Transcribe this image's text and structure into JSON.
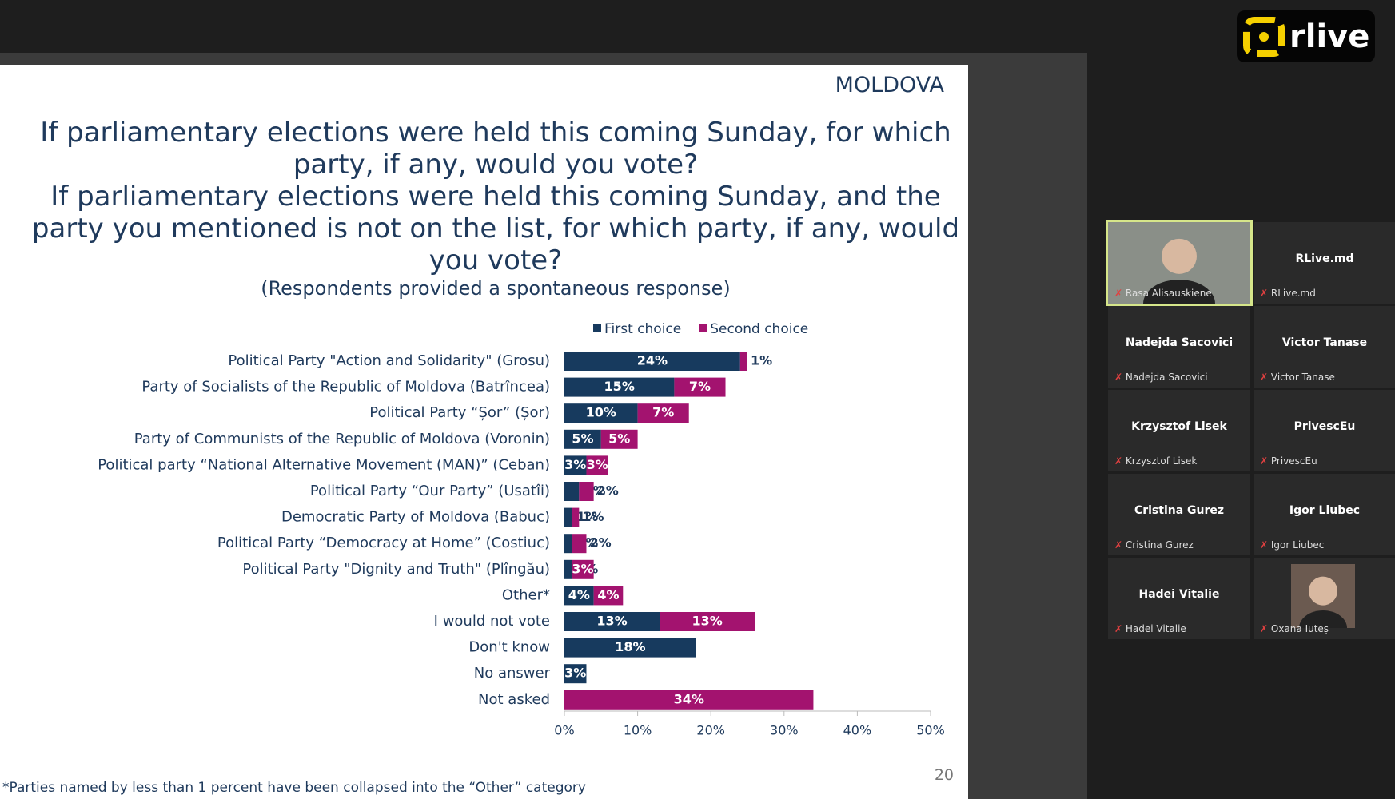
{
  "app": {
    "logo": "rlive"
  },
  "slide": {
    "header": "MOLDOVA",
    "questions": [
      "If parliamentary elections were held this coming Sunday, for which party, if any, would you vote?",
      "If parliamentary elections were held this coming Sunday, and the party you mentioned is not on the list, for which party, if any, would you vote?"
    ],
    "subtitle": "(Respondents provided a spontaneous response)",
    "footnote": "*Parties named by less than 1 percent have been collapsed into the “Other” category",
    "page_number": "20"
  },
  "chart_data": {
    "type": "stacked-barh",
    "categories": [
      "Political Party \"Action and Solidarity\" (Grosu)",
      "Party of Socialists of the Republic of Moldova (Batrîncea)",
      "Political Party “Șor” (Șor)",
      "Party of Communists of the Republic of Moldova (Voronin)",
      "Political party “National Alternative Movement (MAN)” (Ceban)",
      "Political Party “Our Party” (Usatîi)",
      "Democratic Party of Moldova (Babuc)",
      "Political Party “Democracy at Home” (Costiuc)",
      "Political Party \"Dignity and Truth\" (Plîngău)",
      "Other*",
      "I would not vote",
      "Don't know",
      "No answer",
      "Not asked"
    ],
    "series": [
      {
        "name": "First choice",
        "color": "#173a5e",
        "values": [
          24,
          15,
          10,
          5,
          3,
          2,
          1,
          1,
          1,
          4,
          13,
          18,
          3,
          null
        ],
        "value_labels": [
          "24%",
          "15%",
          "10%",
          "5%",
          "3%",
          "2%",
          "1%",
          "1%",
          "1%",
          "4%",
          "13%",
          "18%",
          "3%",
          null
        ]
      },
      {
        "name": "Second choice",
        "color": "#a3136f",
        "values": [
          1,
          7,
          7,
          5,
          3,
          2,
          1,
          2,
          3,
          4,
          13,
          null,
          null,
          34
        ],
        "value_labels": [
          "1%",
          "7%",
          "7%",
          "5%",
          "3%",
          "2%",
          "1%",
          "2%",
          "3%",
          "4%",
          "13%",
          null,
          null,
          "34%"
        ]
      }
    ],
    "xlim": [
      0,
      50
    ],
    "xticks": [
      {
        "value": 0,
        "label": "0%"
      },
      {
        "value": 10,
        "label": "10%"
      },
      {
        "value": 20,
        "label": "20%"
      },
      {
        "value": 30,
        "label": "30%"
      },
      {
        "value": 40,
        "label": "40%"
      },
      {
        "value": 50,
        "label": "50%"
      }
    ],
    "legend": "top"
  },
  "participants": [
    {
      "name": "Rasa Alisauskiene",
      "label": "Rasa Alisauskiene",
      "video": true,
      "active": true
    },
    {
      "name": "RLive.md",
      "label": "RLive.md",
      "video": false
    },
    {
      "name": "Nadejda Sacovici",
      "label": "Nadejda Sacovici",
      "video": false
    },
    {
      "name": "Victor Tanase",
      "label": "Victor Tanase",
      "video": false
    },
    {
      "name": "Krzysztof Lisek",
      "label": "Krzysztof Lisek",
      "video": false
    },
    {
      "name": "PrivescEu",
      "label": "PrivescEu",
      "video": false
    },
    {
      "name": "Cristina Gurez",
      "label": "Cristina Gurez",
      "video": false
    },
    {
      "name": "Igor Liubec",
      "label": "Igor Liubec",
      "video": false
    },
    {
      "name": "Hadei Vitalie",
      "label": "Hadei Vitalie",
      "video": false
    },
    {
      "name": "Oxana Iuteș",
      "label": "Oxana Iuteș",
      "video": true
    }
  ]
}
